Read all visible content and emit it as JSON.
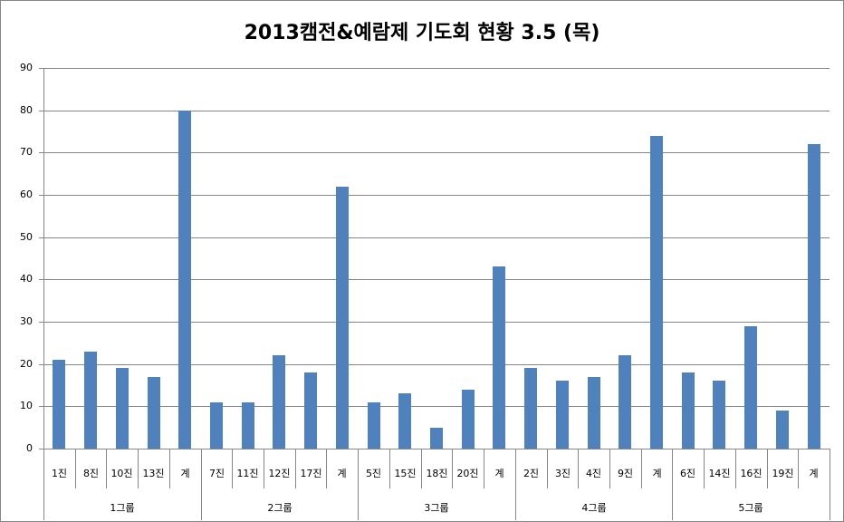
{
  "chart_data": {
    "type": "bar",
    "title": "2013캠전&예람제 기도회 현황 3.5 (목)",
    "xlabel": "",
    "ylabel": "",
    "ylim": [
      0,
      90
    ],
    "yticks": [
      0,
      10,
      20,
      30,
      40,
      50,
      60,
      70,
      80,
      90
    ],
    "grid": true,
    "legend": null,
    "bar_color": "#4f81bd",
    "groups": [
      {
        "name": "1그룹",
        "categories": [
          "1진",
          "8진",
          "10진",
          "13진",
          "계"
        ],
        "values": [
          21,
          23,
          19,
          17,
          80
        ]
      },
      {
        "name": "2그룹",
        "categories": [
          "7진",
          "11진",
          "12진",
          "17진",
          "계"
        ],
        "values": [
          11,
          11,
          22,
          18,
          62
        ]
      },
      {
        "name": "3그룹",
        "categories": [
          "5진",
          "15진",
          "18진",
          "20진",
          "계"
        ],
        "values": [
          11,
          13,
          5,
          14,
          43
        ]
      },
      {
        "name": "4그룹",
        "categories": [
          "2진",
          "3진",
          "4진",
          "9진",
          "계"
        ],
        "values": [
          19,
          16,
          17,
          22,
          74
        ]
      },
      {
        "name": "5그룹",
        "categories": [
          "6진",
          "14진",
          "16진",
          "19진",
          "계"
        ],
        "values": [
          18,
          16,
          29,
          9,
          72
        ]
      }
    ]
  }
}
